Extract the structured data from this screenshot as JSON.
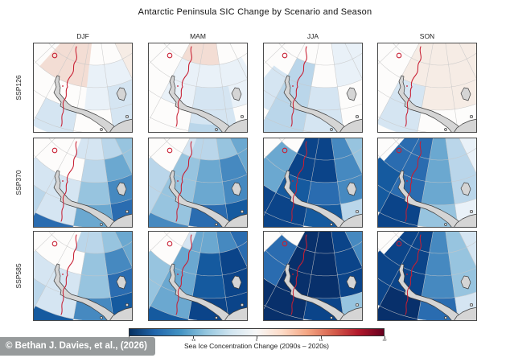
{
  "title": "Antarctic Peninsula SIC Change by Scenario and Season",
  "columns": [
    "DJF",
    "MAM",
    "JJA",
    "SON"
  ],
  "rows": [
    "SSP126",
    "SSP370",
    "SSP585"
  ],
  "colorbar": {
    "label": "Sea Ice Concentration Change (2090s – 2020s)",
    "ticks": [
      "-30",
      "-15",
      "0",
      "15",
      "30"
    ],
    "gradient": [
      "#053061",
      "#2166ac",
      "#4393c3",
      "#92c5de",
      "#d1e5f0",
      "#f7f7f7",
      "#fddbc7",
      "#f4a582",
      "#d6604d",
      "#b2182b",
      "#67001f"
    ]
  },
  "watermark": "© Bethan J. Davies, et al., (2026)",
  "map": {
    "land_fill": "#d5d5d5",
    "coast_line": "#3c3c3c",
    "graticule": "#c7c7c7",
    "sea_ice_edge_line": "#c81e32",
    "panel_background": "#fdfcfb",
    "panel_border": "#4a4a4a"
  },
  "chart_data": {
    "type": "heatmap",
    "title": "Antarctic Peninsula SIC Change by Scenario and Season",
    "rows": [
      "SSP126",
      "SSP370",
      "SSP585"
    ],
    "columns": [
      "DJF",
      "MAM",
      "JJA",
      "SON"
    ],
    "colorbar_label": "Sea Ice Concentration Change (2090s – 2020s)",
    "colorbar_range": [
      -30,
      30
    ],
    "colorbar_ticks": [
      -30,
      -15,
      0,
      15,
      30
    ],
    "summary": [
      [
        "near-zero change, faint increase near ice edge and slight decrease east of peninsula",
        "faint decrease band across central Weddell sector",
        "light decrease concentrated along the ice edge west of the peninsula",
        "near-zero change with faint warm tint offshore"
      ],
      [
        "moderate decrease fan spreading southeast of the ice edge",
        "strong decrease wedge, darkest toward the lower right",
        "very strong decrease core along and east of the ice edge",
        "strong decrease on the west side fading eastward"
      ],
      [
        "strong decrease fan, darker than SSP370",
        "very strong decrease covering the central and eastern sector",
        "extreme decrease (darkest) over most of the sector",
        "very strong decrease on the west side fading eastward"
      ]
    ],
    "panels": [
      {
        "scenario": "SSP126",
        "season": "DJF",
        "sectors": [
          [
            96,
            132,
            48,
            104,
            "#f3ddd4"
          ],
          [
            64,
            96,
            76,
            132,
            "#e9f1f8"
          ],
          [
            60,
            82,
            104,
            160,
            "#d5e5f2"
          ],
          [
            100,
            118,
            132,
            170,
            "#d5e5f2"
          ],
          [
            46,
            64,
            48,
            104,
            "#f6ece5"
          ]
        ]
      },
      {
        "scenario": "SSP126",
        "season": "MAM",
        "sectors": [
          [
            82,
            118,
            48,
            76,
            "#f3ddd4"
          ],
          [
            60,
            118,
            76,
            132,
            "#e9f1f8"
          ],
          [
            78,
            100,
            104,
            160,
            "#d5e5f2"
          ],
          [
            82,
            100,
            150,
            180,
            "#bad6ea"
          ]
        ]
      },
      {
        "scenario": "SSP126",
        "season": "JJA",
        "sectors": [
          [
            60,
            82,
            48,
            104,
            "#e9f1f8"
          ],
          [
            100,
            118,
            76,
            180,
            "#bad6ea"
          ],
          [
            82,
            100,
            104,
            170,
            "#d5e5f2"
          ],
          [
            46,
            64,
            48,
            110,
            "#e9f1f8"
          ],
          [
            118,
            130,
            100,
            150,
            "#d5e5f2"
          ]
        ]
      },
      {
        "scenario": "SSP126",
        "season": "SON",
        "sectors": [
          [
            46,
            100,
            48,
            132,
            "#f6ece5"
          ],
          [
            100,
            118,
            104,
            168,
            "#d5e5f2"
          ],
          [
            100,
            118,
            48,
            104,
            "#f6ece5"
          ],
          [
            46,
            64,
            132,
            170,
            "#f6ece5"
          ]
        ]
      },
      {
        "scenario": "SSP370",
        "season": "DJF",
        "sectors": [
          [
            82,
            110,
            48,
            76,
            "#d5e5f2"
          ],
          [
            64,
            82,
            48,
            76,
            "#bad6ea"
          ],
          [
            46,
            64,
            48,
            104,
            "#97c4df"
          ],
          [
            64,
            82,
            76,
            104,
            "#6ba8d0"
          ],
          [
            64,
            82,
            104,
            132,
            "#4689c0"
          ],
          [
            64,
            82,
            132,
            188,
            "#2a6cb0"
          ],
          [
            82,
            100,
            76,
            104,
            "#bad6ea"
          ],
          [
            82,
            100,
            104,
            132,
            "#97c4df"
          ],
          [
            82,
            100,
            132,
            160,
            "#6ba8d0"
          ],
          [
            100,
            136,
            104,
            160,
            "#d5e5f2"
          ],
          [
            100,
            118,
            160,
            188,
            "#2a6cb0"
          ],
          [
            118,
            136,
            132,
            188,
            "#bad6ea"
          ]
        ]
      },
      {
        "scenario": "SSP370",
        "season": "MAM",
        "sectors": [
          [
            82,
            110,
            48,
            76,
            "#bad6ea"
          ],
          [
            64,
            82,
            48,
            76,
            "#97c4df"
          ],
          [
            46,
            64,
            48,
            104,
            "#6ba8d0"
          ],
          [
            64,
            82,
            76,
            132,
            "#4689c0"
          ],
          [
            64,
            82,
            132,
            188,
            "#155a9f"
          ],
          [
            82,
            100,
            76,
            132,
            "#6ba8d0"
          ],
          [
            82,
            100,
            132,
            160,
            "#2a6cb0"
          ],
          [
            100,
            118,
            76,
            160,
            "#97c4df"
          ],
          [
            100,
            118,
            160,
            188,
            "#4689c0"
          ],
          [
            118,
            136,
            104,
            188,
            "#bad6ea"
          ],
          [
            110,
            118,
            48,
            76,
            "#d5e5f2"
          ]
        ]
      },
      {
        "scenario": "SSP370",
        "season": "JJA",
        "sectors": [
          [
            82,
            118,
            48,
            104,
            "#0b4489"
          ],
          [
            100,
            118,
            104,
            132,
            "#155a9f"
          ],
          [
            82,
            100,
            104,
            132,
            "#2a6cb0"
          ],
          [
            64,
            82,
            48,
            132,
            "#4689c0"
          ],
          [
            46,
            64,
            48,
            104,
            "#97c4df"
          ],
          [
            64,
            82,
            132,
            188,
            "#bad6ea"
          ],
          [
            82,
            100,
            132,
            160,
            "#155a9f"
          ],
          [
            100,
            130,
            132,
            188,
            "#0b4489"
          ],
          [
            118,
            136,
            76,
            132,
            "#6ba8d0"
          ]
        ]
      },
      {
        "scenario": "SSP370",
        "season": "SON",
        "sectors": [
          [
            100,
            132,
            48,
            132,
            "#2a6cb0"
          ],
          [
            82,
            100,
            48,
            132,
            "#6ba8d0"
          ],
          [
            64,
            82,
            48,
            132,
            "#bad6ea"
          ],
          [
            46,
            64,
            48,
            110,
            "#e9f1f8"
          ],
          [
            64,
            82,
            132,
            188,
            "#e9f1f8"
          ],
          [
            100,
            118,
            132,
            188,
            "#0b4489"
          ],
          [
            118,
            136,
            104,
            160,
            "#155a9f"
          ],
          [
            82,
            100,
            132,
            160,
            "#97c4df"
          ]
        ]
      },
      {
        "scenario": "SSP585",
        "season": "DJF",
        "sectors": [
          [
            82,
            110,
            48,
            76,
            "#bad6ea"
          ],
          [
            64,
            82,
            48,
            76,
            "#97c4df"
          ],
          [
            46,
            64,
            48,
            104,
            "#6ba8d0"
          ],
          [
            64,
            82,
            76,
            104,
            "#4689c0"
          ],
          [
            64,
            82,
            104,
            132,
            "#2a6cb0"
          ],
          [
            64,
            82,
            132,
            188,
            "#155a9f"
          ],
          [
            82,
            100,
            76,
            132,
            "#97c4df"
          ],
          [
            82,
            100,
            132,
            160,
            "#4689c0"
          ],
          [
            100,
            136,
            104,
            160,
            "#d5e5f2"
          ],
          [
            100,
            118,
            160,
            188,
            "#155a9f"
          ],
          [
            118,
            136,
            132,
            188,
            "#bad6ea"
          ]
        ]
      },
      {
        "scenario": "SSP585",
        "season": "MAM",
        "sectors": [
          [
            82,
            110,
            48,
            76,
            "#6ba8d0"
          ],
          [
            64,
            82,
            48,
            76,
            "#4689c0"
          ],
          [
            46,
            64,
            48,
            104,
            "#2a6cb0"
          ],
          [
            64,
            82,
            76,
            188,
            "#0b4489"
          ],
          [
            82,
            100,
            76,
            132,
            "#155a9f"
          ],
          [
            82,
            100,
            132,
            160,
            "#0b4489"
          ],
          [
            100,
            118,
            76,
            160,
            "#6ba8d0"
          ],
          [
            100,
            118,
            160,
            188,
            "#155a9f"
          ],
          [
            118,
            136,
            104,
            188,
            "#97c4df"
          ],
          [
            110,
            118,
            48,
            76,
            "#d5e5f2"
          ]
        ]
      },
      {
        "scenario": "SSP585",
        "season": "JJA",
        "sectors": [
          [
            82,
            118,
            48,
            132,
            "#08306b"
          ],
          [
            64,
            82,
            48,
            132,
            "#0b4489"
          ],
          [
            46,
            64,
            48,
            104,
            "#4689c0"
          ],
          [
            64,
            82,
            132,
            188,
            "#97c4df"
          ],
          [
            82,
            100,
            132,
            160,
            "#0b4489"
          ],
          [
            100,
            130,
            132,
            188,
            "#08306b"
          ],
          [
            118,
            136,
            76,
            132,
            "#2a6cb0"
          ]
        ]
      },
      {
        "scenario": "SSP585",
        "season": "SON",
        "sectors": [
          [
            100,
            132,
            48,
            132,
            "#0b4489"
          ],
          [
            82,
            100,
            48,
            132,
            "#4689c0"
          ],
          [
            64,
            82,
            48,
            132,
            "#97c4df"
          ],
          [
            46,
            64,
            48,
            110,
            "#d5e5f2"
          ],
          [
            64,
            82,
            132,
            188,
            "#d5e5f2"
          ],
          [
            100,
            118,
            132,
            188,
            "#08306b"
          ],
          [
            118,
            136,
            104,
            160,
            "#0b4489"
          ],
          [
            82,
            100,
            132,
            160,
            "#2a6cb0"
          ]
        ]
      }
    ]
  }
}
